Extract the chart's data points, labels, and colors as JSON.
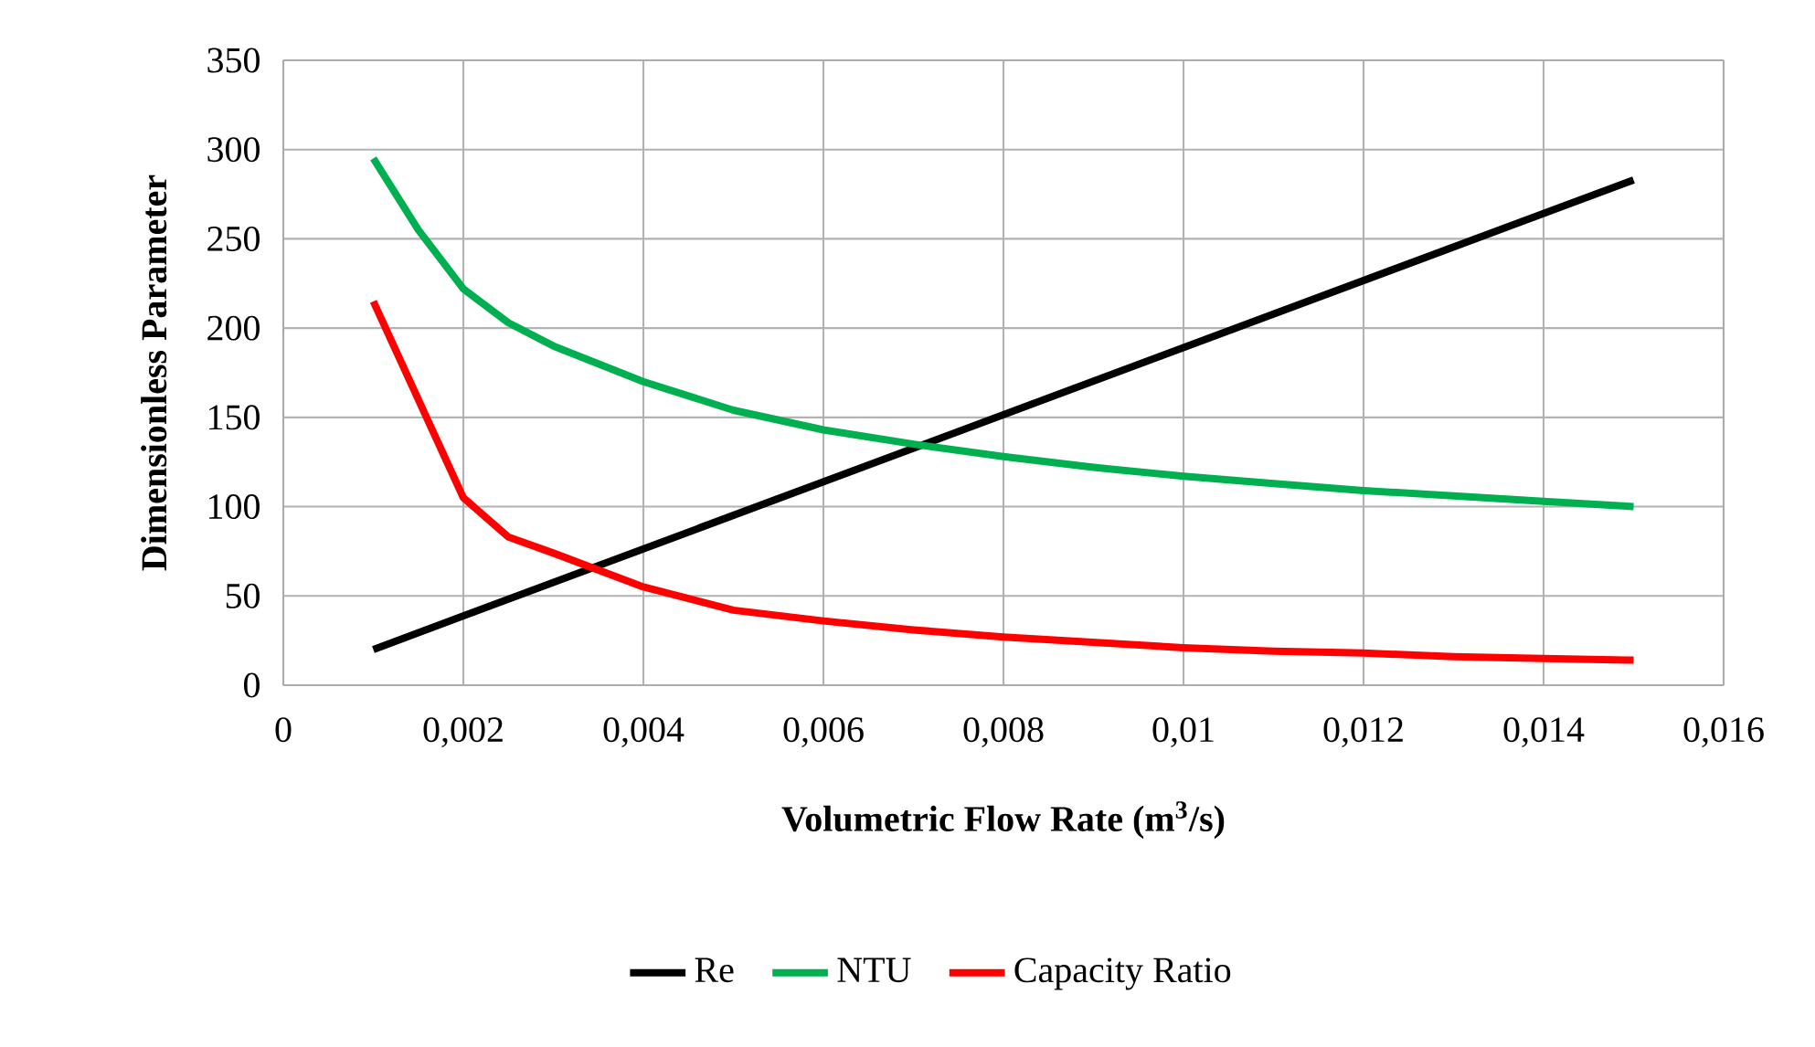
{
  "chart_data": {
    "type": "line",
    "xlabel": "Volumetric Flow Rate (m$^{3}$/s)",
    "ylabel": "Dimensionless Parameter",
    "xlim": [
      0,
      0.016
    ],
    "ylim": [
      0,
      350
    ],
    "xticks": [
      0,
      {
        "value": 0.002,
        "label": "0,002"
      },
      {
        "value": 0.004,
        "label": "0,004"
      },
      {
        "value": 0.006,
        "label": "0,006"
      },
      {
        "value": 0.008,
        "label": "0,008"
      },
      {
        "value": 0.01,
        "label": "0,01"
      },
      {
        "value": 0.012,
        "label": "0,012"
      },
      {
        "value": 0.014,
        "label": "0,014"
      },
      {
        "value": 0.016,
        "label": "0,016"
      }
    ],
    "yticks": [
      0,
      50,
      100,
      150,
      200,
      250,
      300,
      350
    ],
    "grid": true,
    "legend": "bottom",
    "marker": "none",
    "line_style": "solid",
    "series": [
      {
        "name": "Re",
        "color": "#000000",
        "x": [
          0.001,
          0.015
        ],
        "values": [
          20,
          283
        ]
      },
      {
        "name": "NTU",
        "color": "#00b050",
        "x": [
          0.001,
          0.0015,
          0.002,
          0.0025,
          0.003,
          0.004,
          0.005,
          0.006,
          0.007,
          0.008,
          0.009,
          0.01,
          0.011,
          0.012,
          0.013,
          0.014,
          0.015
        ],
        "values": [
          295,
          255,
          222,
          203,
          190,
          170,
          154,
          143,
          135,
          128,
          122,
          117,
          113,
          109,
          106,
          103,
          100
        ]
      },
      {
        "name": "Capacity Ratio",
        "color": "#ff0000",
        "x": [
          0.001,
          0.0015,
          0.002,
          0.0025,
          0.003,
          0.004,
          0.005,
          0.006,
          0.007,
          0.008,
          0.009,
          0.01,
          0.011,
          0.012,
          0.013,
          0.014,
          0.015
        ],
        "values": [
          215,
          160,
          105,
          83,
          74,
          55,
          42,
          36,
          31,
          27,
          24,
          21,
          19,
          18,
          16,
          15,
          14
        ]
      }
    ]
  }
}
